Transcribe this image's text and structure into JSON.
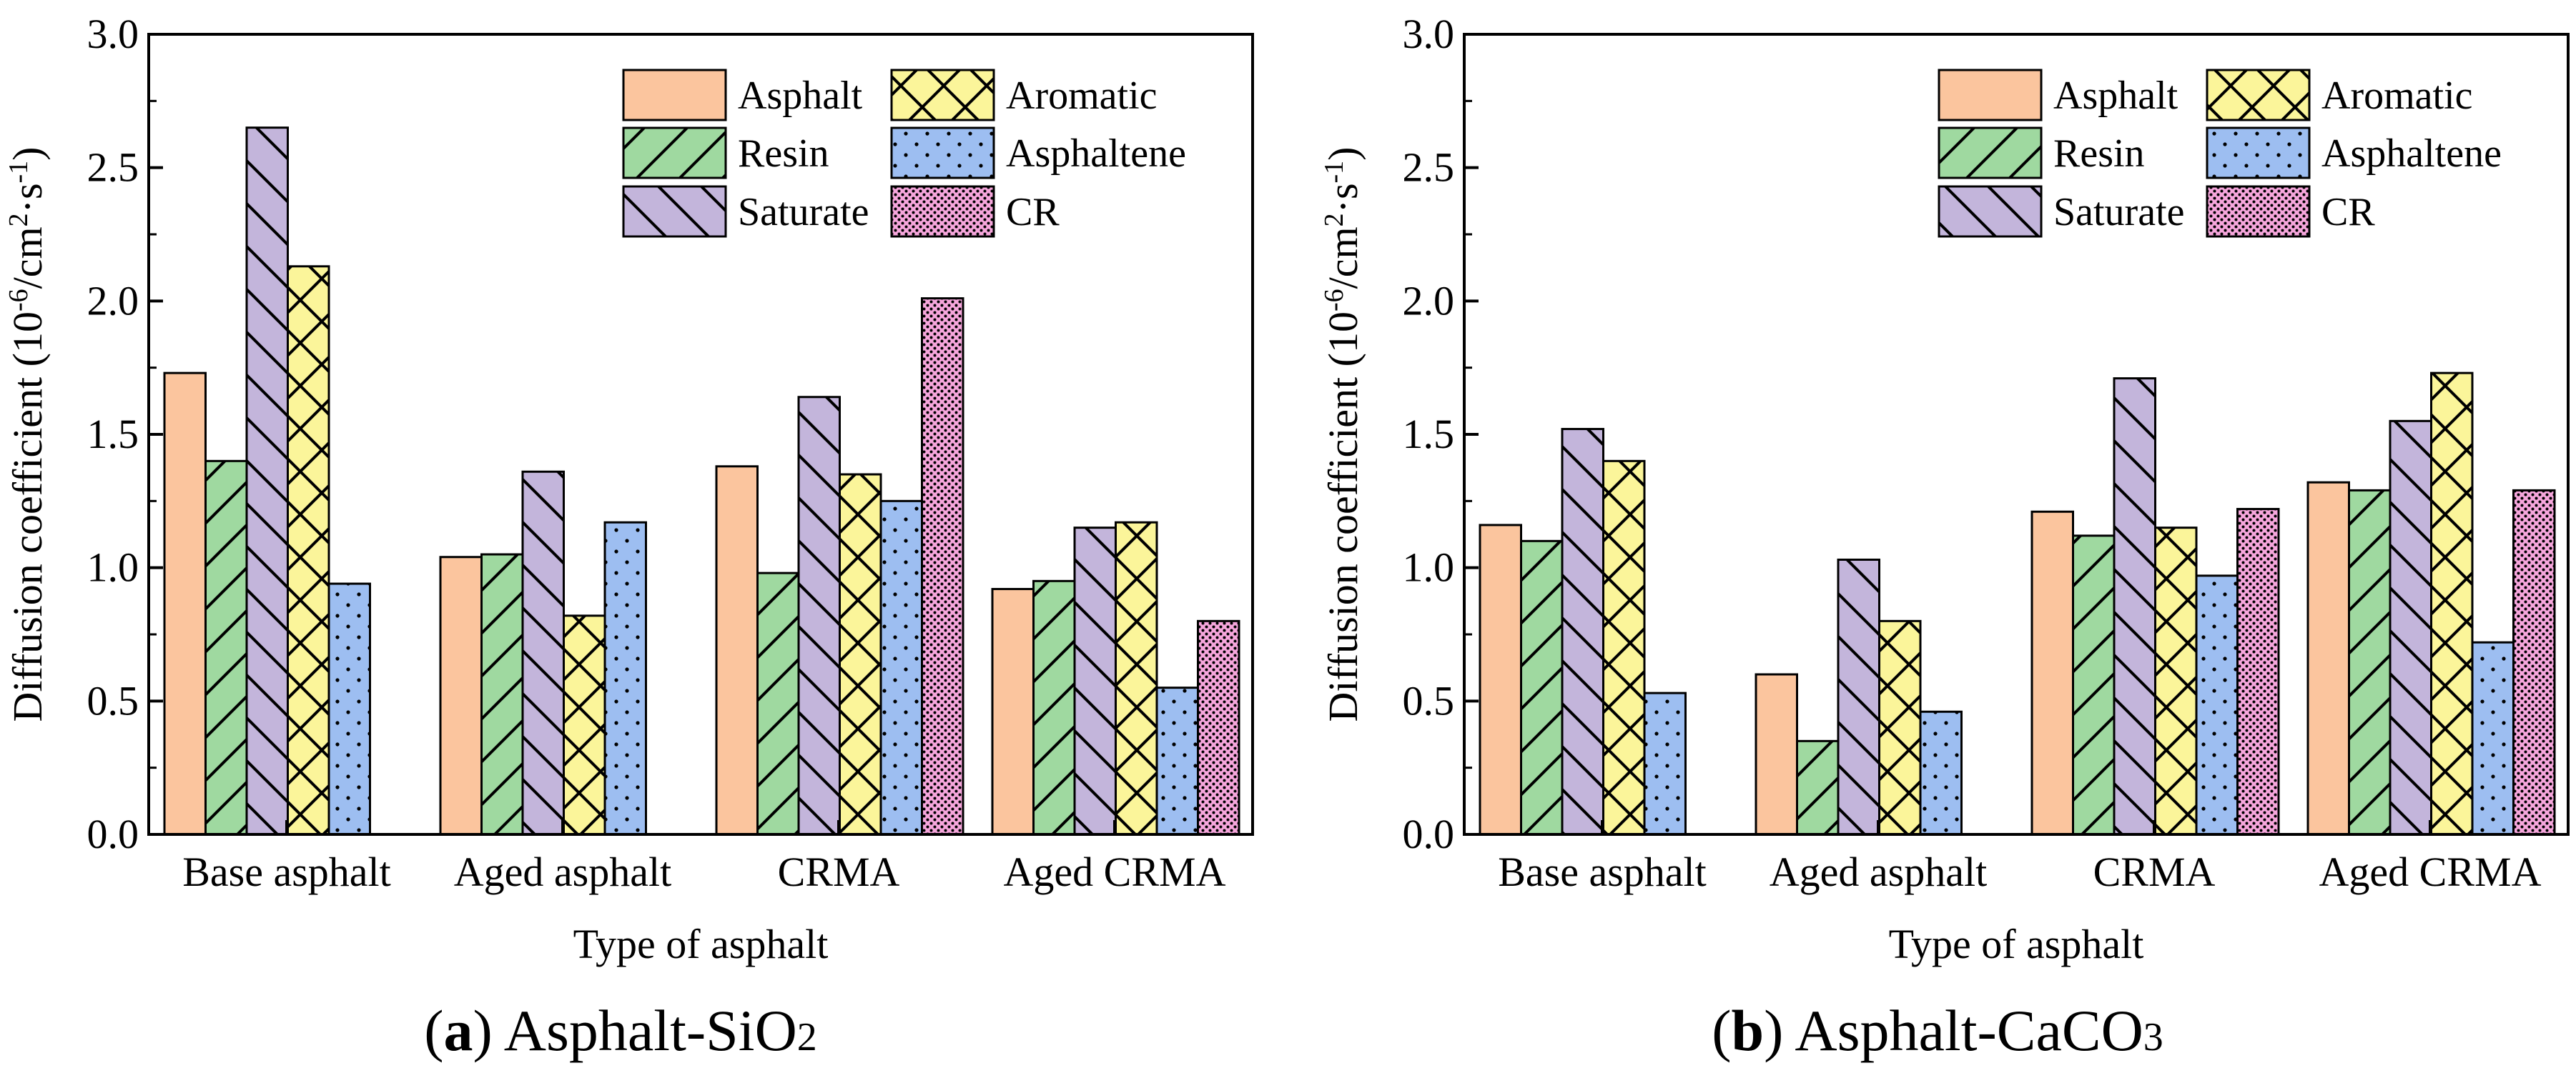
{
  "chart_data": [
    {
      "type": "bar",
      "id": "a",
      "caption_label": "a",
      "caption_text": "Asphalt-SiO",
      "caption_sub": "2",
      "categories": [
        "Base asphalt",
        "Aged asphalt",
        "CRMA",
        "Aged CRMA"
      ],
      "series": [
        {
          "name": "Asphalt",
          "values": [
            1.73,
            1.04,
            1.38,
            0.92
          ]
        },
        {
          "name": "Resin",
          "values": [
            1.4,
            1.05,
            0.98,
            0.95
          ]
        },
        {
          "name": "Saturate",
          "values": [
            2.65,
            1.36,
            1.64,
            1.15
          ]
        },
        {
          "name": "Aromatic",
          "values": [
            2.13,
            0.82,
            1.35,
            1.17
          ]
        },
        {
          "name": "Asphaltene",
          "values": [
            0.94,
            1.17,
            1.25,
            0.55
          ]
        },
        {
          "name": "CR",
          "values": [
            null,
            null,
            2.01,
            0.8
          ]
        }
      ],
      "ylim": [
        0,
        3.0
      ],
      "yticks": [
        "0.0",
        "0.5",
        "1.0",
        "1.5",
        "2.0",
        "2.5",
        "3.0"
      ],
      "xlabel": "Type of asphalt",
      "ylabel": {
        "main": "Diffusion coefficient (10",
        "sup1": "-6",
        "mid": "/cm",
        "sup2": "2",
        "mid2": "·s",
        "sup3": "-1",
        "end": ")"
      },
      "grid": false,
      "legend_position": "top-right"
    },
    {
      "type": "bar",
      "id": "b",
      "caption_label": "b",
      "caption_text": "Asphalt-CaCO",
      "caption_sub": "3",
      "categories": [
        "Base asphalt",
        "Aged asphalt",
        "CRMA",
        "Aged CRMA"
      ],
      "series": [
        {
          "name": "Asphalt",
          "values": [
            1.16,
            0.6,
            1.21,
            1.32
          ]
        },
        {
          "name": "Resin",
          "values": [
            1.1,
            0.35,
            1.12,
            1.29
          ]
        },
        {
          "name": "Saturate",
          "values": [
            1.52,
            1.03,
            1.71,
            1.55
          ]
        },
        {
          "name": "Aromatic",
          "values": [
            1.4,
            0.8,
            1.15,
            1.73
          ]
        },
        {
          "name": "Asphaltene",
          "values": [
            0.53,
            0.46,
            0.97,
            0.72
          ]
        },
        {
          "name": "CR",
          "values": [
            null,
            null,
            1.22,
            1.29
          ]
        }
      ],
      "ylim": [
        0,
        3.0
      ],
      "yticks": [
        "0.0",
        "0.5",
        "1.0",
        "1.5",
        "2.0",
        "2.5",
        "3.0"
      ],
      "xlabel": "Type of asphalt",
      "ylabel": {
        "main": "Diffusion coefficient (10",
        "sup1": "-6",
        "mid": "/cm",
        "sup2": "2",
        "mid2": "·s",
        "sup3": "-1",
        "end": ")"
      },
      "grid": false,
      "legend_position": "top-right"
    }
  ],
  "series_style": {
    "Asphalt": {
      "color": "#FBC59E",
      "pattern": "none"
    },
    "Resin": {
      "color": "#9FD9A0",
      "pattern": "forward-diagonal"
    },
    "Saturate": {
      "color": "#C3B5DB",
      "pattern": "back-diagonal"
    },
    "Aromatic": {
      "color": "#FBF59A",
      "pattern": "crosshatch"
    },
    "Asphaltene": {
      "color": "#9DBEF1",
      "pattern": "dots"
    },
    "CR": {
      "color": "#F6A6DC",
      "pattern": "dense-dots"
    }
  }
}
